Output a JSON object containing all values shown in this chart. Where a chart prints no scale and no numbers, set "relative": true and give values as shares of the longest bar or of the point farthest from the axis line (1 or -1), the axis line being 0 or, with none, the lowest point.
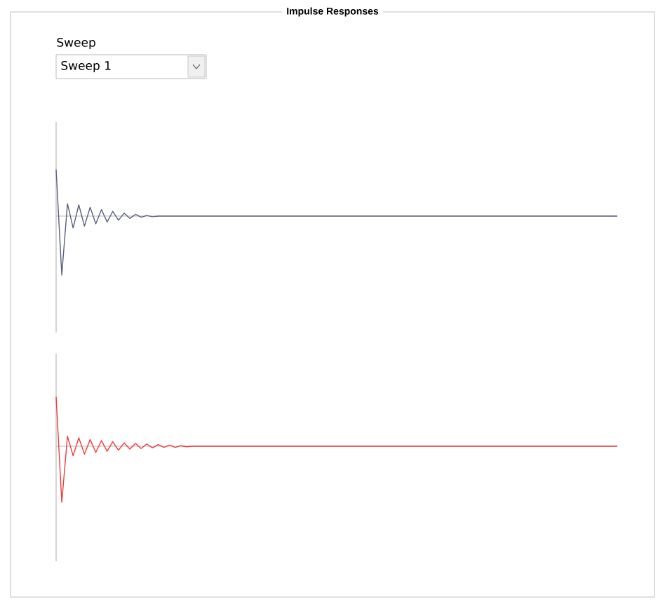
{
  "chart_data": [
    {
      "type": "line",
      "title": "Impulse Responses",
      "annotations": [
        "Sweep",
        "Sweep 1"
      ],
      "relative": true,
      "categories": [
        null,
        null,
        null,
        null,
        null,
        null,
        null,
        null,
        null,
        null,
        null,
        null,
        null,
        null,
        null,
        null,
        null,
        null,
        null,
        null,
        null,
        null,
        null,
        null,
        null,
        null,
        null,
        null,
        null,
        null,
        null,
        null,
        null,
        null,
        null,
        null,
        null,
        null,
        null,
        null,
        null,
        null,
        null,
        null,
        null,
        null,
        null,
        null,
        null,
        null,
        null,
        null,
        null,
        null,
        null,
        null,
        null,
        null,
        null,
        null,
        null,
        null,
        null,
        null,
        null,
        null,
        null,
        null,
        null,
        null,
        null,
        null,
        null,
        null,
        null,
        null,
        null,
        null,
        null,
        null,
        null,
        null,
        null,
        null,
        null,
        null,
        null,
        null,
        null,
        null,
        null,
        null,
        null,
        null,
        null,
        null,
        null,
        null,
        null,
        null
      ],
      "series": [
        {
          "color": "#5a5f7d",
          "values": [
            0.79,
            -1,
            0.21,
            -0.2,
            0.19,
            -0.17,
            0.15,
            -0.13,
            0.11,
            -0.1,
            0.08,
            -0.07,
            0.05,
            -0.04,
            0.03,
            -0.02,
            0.01,
            -0.01,
            0,
            0,
            0,
            0,
            0,
            0,
            0,
            0,
            0,
            0,
            0,
            0,
            0,
            0,
            0,
            0,
            0,
            0,
            0,
            0,
            0,
            0,
            0,
            0,
            0,
            0,
            0,
            0,
            0,
            0,
            0,
            0,
            0,
            0,
            0,
            0,
            0,
            0,
            0,
            0,
            0,
            0,
            0,
            0,
            0,
            0,
            0,
            0,
            0,
            0,
            0,
            0,
            0,
            0,
            0,
            0,
            0,
            0,
            0,
            0,
            0,
            0,
            0,
            0,
            0,
            0,
            0,
            0,
            0,
            0,
            0,
            0,
            0,
            0,
            0,
            0,
            0,
            0,
            0,
            0,
            0,
            0
          ]
        }
      ]
    },
    {
      "type": "line",
      "relative": true,
      "categories": [
        null,
        null,
        null,
        null,
        null,
        null,
        null,
        null,
        null,
        null,
        null,
        null,
        null,
        null,
        null,
        null,
        null,
        null,
        null,
        null,
        null,
        null,
        null,
        null,
        null,
        null,
        null,
        null,
        null,
        null,
        null,
        null,
        null,
        null,
        null,
        null,
        null,
        null,
        null,
        null,
        null,
        null,
        null,
        null,
        null,
        null,
        null,
        null,
        null,
        null,
        null,
        null,
        null,
        null,
        null,
        null,
        null,
        null,
        null,
        null,
        null,
        null,
        null,
        null,
        null,
        null,
        null,
        null,
        null,
        null,
        null,
        null,
        null,
        null,
        null,
        null,
        null,
        null,
        null,
        null,
        null,
        null,
        null,
        null,
        null,
        null,
        null,
        null,
        null,
        null,
        null,
        null,
        null,
        null,
        null,
        null,
        null,
        null,
        null,
        null
      ],
      "series": [
        {
          "color": "#f03a3a",
          "values": [
            0.88,
            -1,
            0.18,
            -0.17,
            0.15,
            -0.14,
            0.12,
            -0.11,
            0.1,
            -0.09,
            0.08,
            -0.07,
            0.06,
            -0.05,
            0.05,
            -0.04,
            0.04,
            -0.03,
            0.03,
            -0.02,
            0.02,
            -0.02,
            0.01,
            -0.01,
            0,
            0,
            0,
            0,
            0,
            0,
            0,
            0,
            0,
            0,
            0,
            0,
            0,
            0,
            0,
            0,
            0,
            0,
            0,
            0,
            0,
            0,
            0,
            0,
            0,
            0,
            0,
            0,
            0,
            0,
            0,
            0,
            0,
            0,
            0,
            0,
            0,
            0,
            0,
            0,
            0,
            0,
            0,
            0,
            0,
            0,
            0,
            0,
            0,
            0,
            0,
            0,
            0,
            0,
            0,
            0,
            0,
            0,
            0,
            0,
            0,
            0,
            0,
            0,
            0,
            0,
            0,
            0,
            0,
            0,
            0,
            0,
            0,
            0,
            0,
            0
          ]
        }
      ]
    }
  ]
}
